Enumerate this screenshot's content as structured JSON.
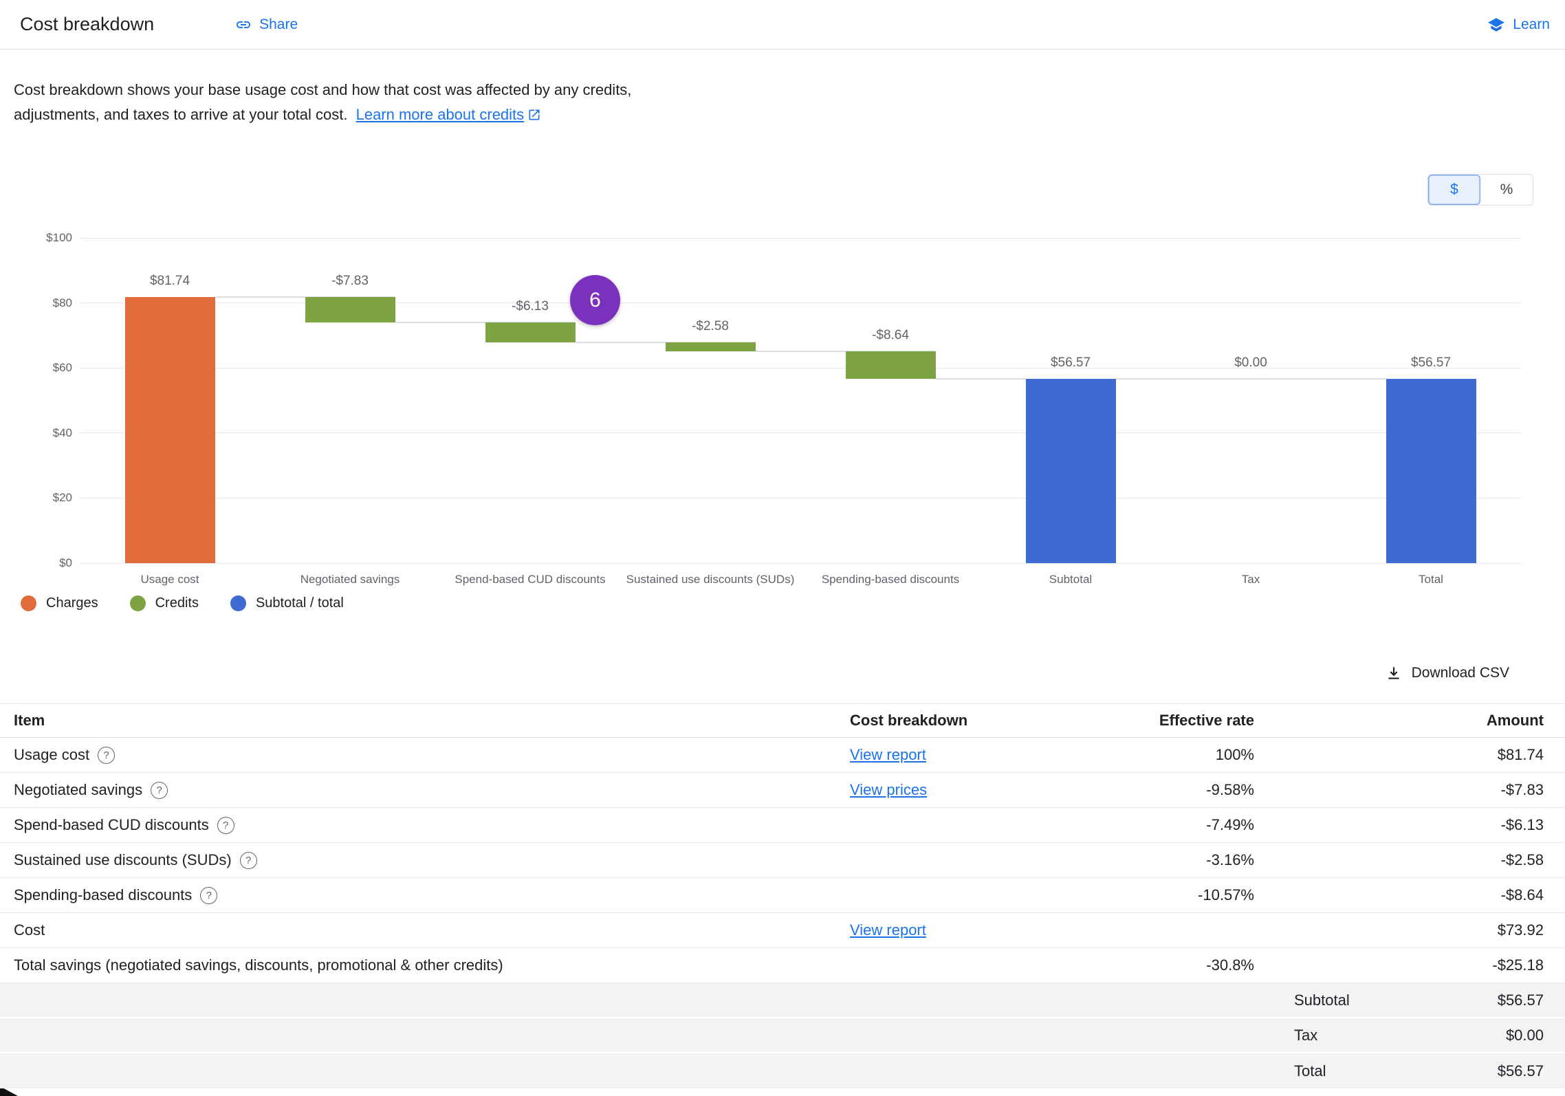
{
  "header": {
    "title": "Cost breakdown",
    "share_label": "Share",
    "learn_label": "Learn"
  },
  "description": {
    "text": "Cost breakdown shows your base usage cost and how that cost was affected by any credits, adjustments, and taxes to arrive at your total cost.",
    "link_label": "Learn more about credits"
  },
  "unit_toggle": {
    "dollar_label": "$",
    "percent_label": "%",
    "selected": "$"
  },
  "step_badge": {
    "value": "6"
  },
  "chart_data": {
    "type": "bar",
    "subtype": "waterfall",
    "title": "",
    "categories": [
      "Usage cost",
      "Negotiated savings",
      "Spend-based CUD discounts",
      "Sustained use discounts (SUDs)",
      "Spending-based discounts",
      "Subtotal",
      "Tax",
      "Total"
    ],
    "values": [
      81.74,
      -7.83,
      -6.13,
      -2.58,
      -8.64,
      56.57,
      0,
      56.57
    ],
    "value_labels": [
      "$81.74",
      "-$7.83",
      "-$6.13",
      "-$2.58",
      "-$8.64",
      "$56.57",
      "$0.00",
      "$56.57"
    ],
    "bar_types": [
      "charge",
      "credit",
      "credit",
      "credit",
      "credit",
      "subtotal",
      "tax",
      "total"
    ],
    "ylim": [
      0,
      100
    ],
    "yticks": [
      {
        "label": "$0",
        "value": 0
      },
      {
        "label": "$20",
        "value": 20
      },
      {
        "label": "$40",
        "value": 40
      },
      {
        "label": "$60",
        "value": 60
      },
      {
        "label": "$80",
        "value": 80
      },
      {
        "label": "$100",
        "value": 100
      }
    ],
    "grid": true,
    "legend_position": "bottom-left",
    "colors": {
      "charge": "#df6c3a",
      "credit": "#7da342",
      "subtotal": "#3d6bd2",
      "tax": "#3d6bd2",
      "total": "#3d6bd2"
    },
    "legend": [
      {
        "label": "Charges",
        "color": "#df6c3a"
      },
      {
        "label": "Credits",
        "color": "#7da342"
      },
      {
        "label": "Subtotal / total",
        "color": "#3d6bd2"
      }
    ]
  },
  "table": {
    "download_label": "Download CSV",
    "headers": {
      "item": "Item",
      "breakdown": "Cost breakdown",
      "rate": "Effective rate",
      "amount": "Amount"
    },
    "rows": [
      {
        "item": "Usage cost",
        "help": true,
        "link": "View report",
        "rate": "100%",
        "amount": "$81.74"
      },
      {
        "item": "Negotiated savings",
        "help": true,
        "link": "View prices",
        "rate": "-9.58%",
        "amount": "-$7.83"
      },
      {
        "item": "Spend-based CUD discounts",
        "help": true,
        "link": "",
        "rate": "-7.49%",
        "amount": "-$6.13"
      },
      {
        "item": "Sustained use discounts (SUDs)",
        "help": true,
        "link": "",
        "rate": "-3.16%",
        "amount": "-$2.58"
      },
      {
        "item": "Spending-based discounts",
        "help": true,
        "link": "",
        "rate": "-10.57%",
        "amount": "-$8.64"
      },
      {
        "item": "Cost",
        "help": false,
        "link": "View report",
        "rate": "",
        "amount": "$73.92"
      },
      {
        "item": "Total savings (negotiated savings, discounts, promotional & other credits)",
        "help": false,
        "link": "",
        "rate": "-30.8%",
        "amount": "-$25.18"
      }
    ],
    "summary_rows": [
      {
        "label": "Subtotal",
        "amount": "$56.57"
      },
      {
        "label": "Tax",
        "amount": "$0.00"
      },
      {
        "label": "Total",
        "amount": "$56.57"
      }
    ]
  },
  "colors": {
    "accent_blue": "#1a73e8",
    "badge": "#7c31be",
    "summary_row_bg": "#f1f3f4"
  }
}
